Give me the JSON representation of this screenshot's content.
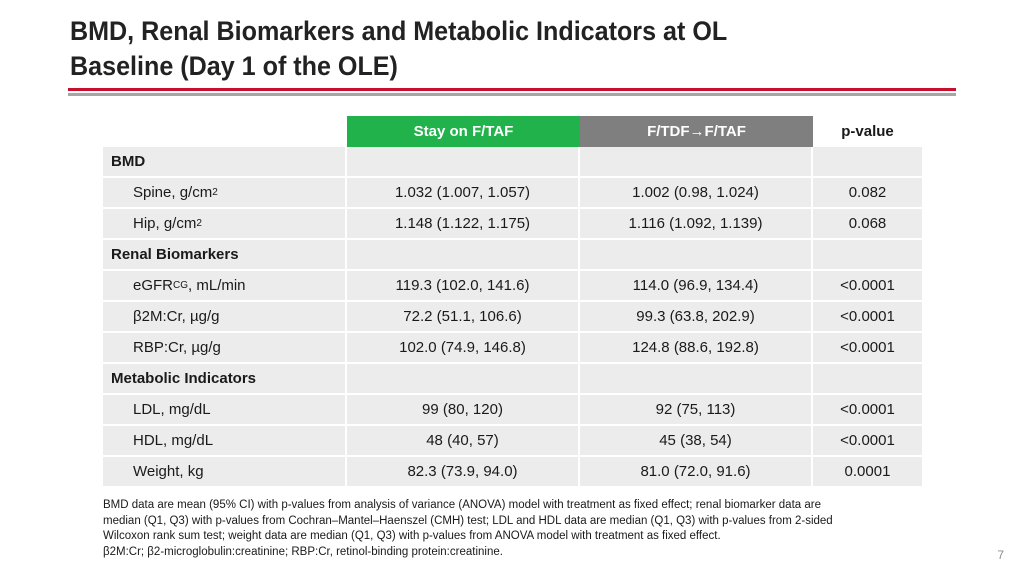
{
  "title_line1": "BMD, Renal Biomarkers and Metabolic Indicators at OL",
  "title_line2": "Baseline (Day 1 of the OLE)",
  "headers": {
    "group1": "Stay on F/TAF",
    "group2": "F/TDF→F/TAF",
    "pvalue": "p-value"
  },
  "sections": [
    {
      "name": "BMD",
      "rows": [
        {
          "label_pre": "Spine, g/cm",
          "sup": "2",
          "label_post": "",
          "g1": "1.032 (1.007, 1.057)",
          "g2": "1.002 (0.98, 1.024)",
          "p": "0.082"
        },
        {
          "label_pre": "Hip, g/cm",
          "sup": "2",
          "label_post": "",
          "g1": "1.148 (1.122, 1.175)",
          "g2": "1.116 (1.092, 1.139)",
          "p": "0.068"
        }
      ]
    },
    {
      "name": "Renal Biomarkers",
      "rows": [
        {
          "label_pre": "eGFR",
          "sub": "CG",
          "label_post": ", mL/min",
          "g1": "119.3 (102.0, 141.6)",
          "g2": "114.0 (96.9, 134.4)",
          "p": "<0.0001"
        },
        {
          "label_pre": "β2M:Cr, µg/g",
          "label_post": "",
          "g1": "72.2 (51.1, 106.6)",
          "g2": "99.3 (63.8, 202.9)",
          "p": "<0.0001"
        },
        {
          "label_pre": "RBP:Cr, µg/g",
          "label_post": "",
          "g1": "102.0 (74.9, 146.8)",
          "g2": "124.8 (88.6, 192.8)",
          "p": "<0.0001"
        }
      ]
    },
    {
      "name": "Metabolic Indicators",
      "rows": [
        {
          "label_pre": "LDL, mg/dL",
          "label_post": "",
          "g1": "99 (80, 120)",
          "g2": "92 (75, 113)",
          "p": "<0.0001"
        },
        {
          "label_pre": "HDL, mg/dL",
          "label_post": "",
          "g1": "48 (40, 57)",
          "g2": "45 (38, 54)",
          "p": "<0.0001"
        },
        {
          "label_pre": "Weight, kg",
          "label_post": "",
          "g1": "82.3 (73.9, 94.0)",
          "g2": "81.0 (72.0, 91.6)",
          "p": "0.0001"
        }
      ]
    }
  ],
  "footnote_lines": [
    "BMD data are mean (95% CI) with p-values from analysis of variance (ANOVA) model with treatment as fixed effect; renal biomarker data are",
    "median (Q1, Q3) with p-values from Cochran–Mantel–Haenszel (CMH) test; LDL and HDL data are median (Q1, Q3) with p-values from 2-sided",
    "Wilcoxon rank sum test; weight data are median (Q1, Q3) with p-values from ANOVA model with treatment as fixed effect.",
    "β2M:Cr; β2-microglobulin:creatinine; RBP:Cr, retinol-binding protein:creatinine."
  ],
  "page_number": "7",
  "colors": {
    "accent_red": "#c8102e",
    "group1_green": "#21b24b",
    "group2_gray": "#7f7f7f",
    "row_bg": "#ececec"
  }
}
